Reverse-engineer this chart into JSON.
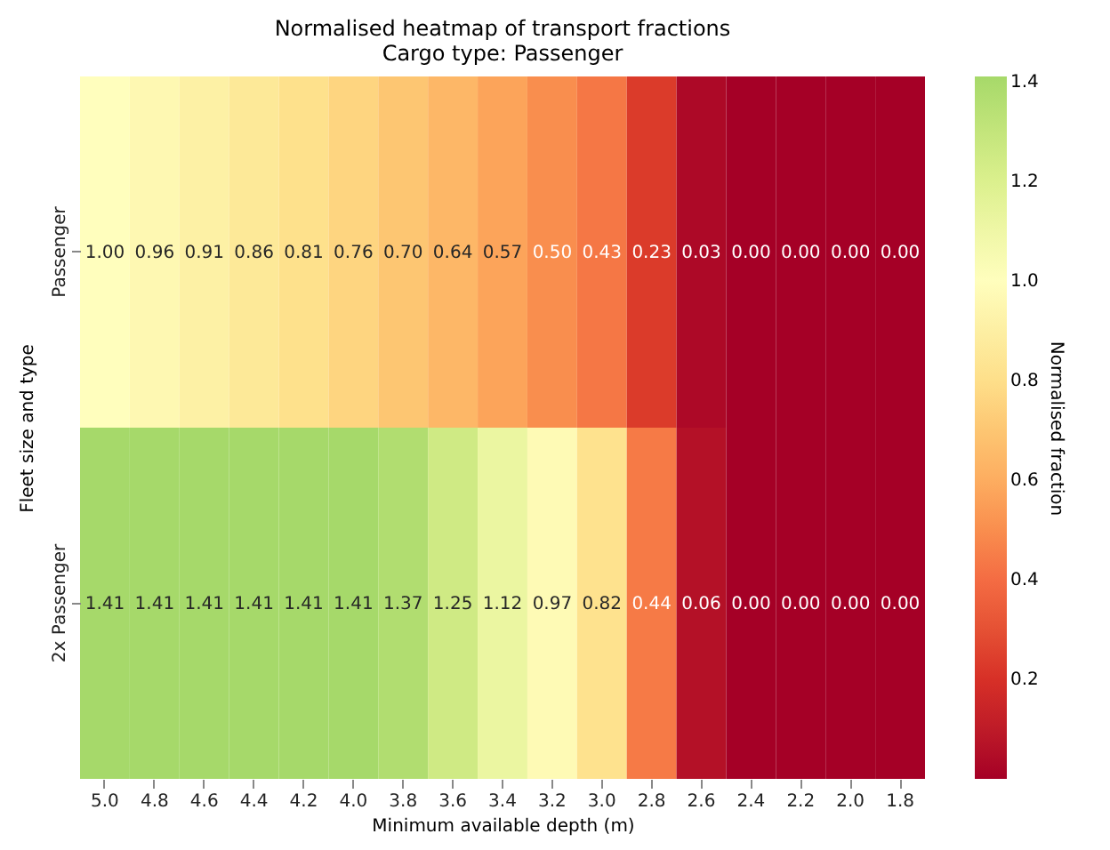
{
  "chart_data": {
    "type": "heatmap",
    "title": "Normalised heatmap of transport fractions",
    "subtitle": "Cargo type: Passenger",
    "xlabel": "Minimum available depth (m)",
    "ylabel": "Fleet size and type",
    "clabel": "Normalised fraction",
    "categories": [
      "5.0",
      "4.8",
      "4.6",
      "4.4",
      "4.2",
      "4.0",
      "3.8",
      "3.6",
      "3.4",
      "3.2",
      "3.0",
      "2.8",
      "2.6",
      "2.4",
      "2.2",
      "2.0",
      "1.8"
    ],
    "y_categories": [
      "Passenger",
      "2x Passenger"
    ],
    "cells": [
      [
        1.0,
        0.96,
        0.91,
        0.86,
        0.81,
        0.76,
        0.7,
        0.64,
        0.57,
        0.5,
        0.43,
        0.23,
        0.03,
        0.0,
        0.0,
        0.0,
        0.0
      ],
      [
        1.41,
        1.41,
        1.41,
        1.41,
        1.41,
        1.41,
        1.37,
        1.25,
        1.12,
        0.97,
        0.82,
        0.44,
        0.06,
        0.0,
        0.0,
        0.0,
        0.0
      ]
    ],
    "cell_labels": [
      [
        "1.00",
        "0.96",
        "0.91",
        "0.86",
        "0.81",
        "0.76",
        "0.70",
        "0.64",
        "0.57",
        "0.50",
        "0.43",
        "0.23",
        "0.03",
        "0.00",
        "0.00",
        "0.00",
        "0.00"
      ],
      [
        "1.41",
        "1.41",
        "1.41",
        "1.41",
        "1.41",
        "1.41",
        "1.37",
        "1.25",
        "1.12",
        "0.97",
        "0.82",
        "0.44",
        "0.06",
        "0.00",
        "0.00",
        "0.00",
        "0.00"
      ]
    ],
    "clim": [
      0,
      1.41
    ],
    "cticks": [
      0.2,
      0.4,
      0.6,
      0.8,
      {
        "value": 1.0,
        "label": "1.0"
      },
      1.2,
      1.4
    ]
  }
}
